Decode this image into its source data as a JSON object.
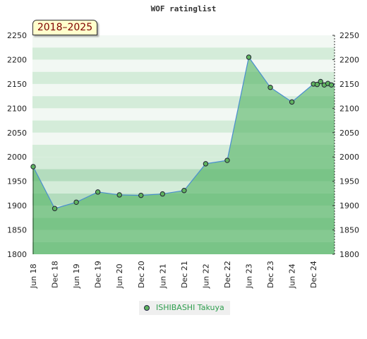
{
  "chart_data": {
    "type": "area",
    "title": "WOF ratinglist",
    "period_label": "2018–2025",
    "ylim": [
      1800,
      2250
    ],
    "y_ticks": [
      1800,
      1850,
      1900,
      1950,
      2000,
      2050,
      2100,
      2150,
      2200,
      2250
    ],
    "y_ticks_right": true,
    "x_tick_labels": [
      "Jun 18",
      "Dec 18",
      "Jun 19",
      "Dec 19",
      "Jun 20",
      "Dec 20",
      "Jun 21",
      "Dec 21",
      "Jun 22",
      "Dec 22",
      "Jun 23",
      "Dec 23",
      "Jun 24",
      "Dec 24"
    ],
    "legend_position": "bottom-center",
    "series": [
      {
        "name": "ISHIBASHI Takuya",
        "x": [
          0,
          1,
          2,
          3,
          4,
          5,
          6,
          7,
          8,
          9,
          10,
          11,
          12,
          13,
          13.17,
          13.33,
          13.5,
          13.67,
          13.83
        ],
        "values": [
          1980,
          1894,
          1907,
          1928,
          1922,
          1921,
          1924,
          1931,
          1986,
          1993,
          2205,
          2143,
          2113,
          2150,
          2149,
          2155,
          2148,
          2151,
          2148
        ]
      }
    ],
    "colors": {
      "area_fill": "#5bb76a",
      "line": "#4a8ed0",
      "marker_fill": "#5fb35f",
      "band_light": "#f2f8f3",
      "band_mid": "#d4ecd9",
      "band_dark": "#b3dcbd"
    }
  }
}
